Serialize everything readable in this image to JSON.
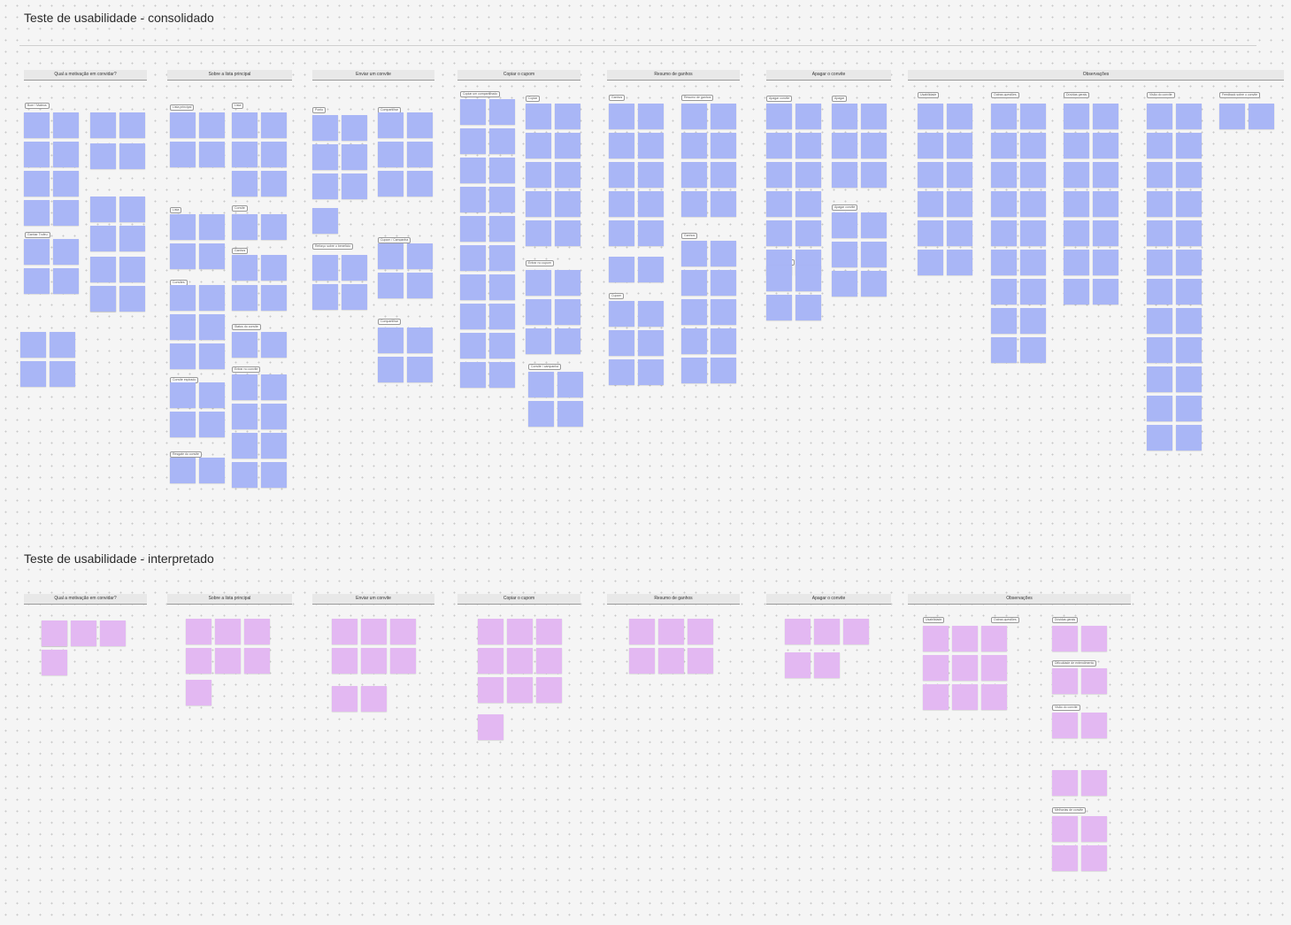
{
  "colors": {
    "canvas": "#f5f5f5",
    "note_blue": "#a9b6f6",
    "note_purple": "#e3b8f2",
    "header_bg": "#e8e8e8"
  },
  "sections": [
    {
      "title": "Teste de usabilidade - consolidado",
      "note_color": "blue",
      "columns": [
        {
          "label": "Qual a motivação em convidar?",
          "tags": [
            "Bom / Mateus",
            "Ganhar Trofeu"
          ]
        },
        {
          "label": "Sobre a lista principal",
          "tags": [
            "Lista principal",
            "Lista",
            "Lista",
            "Convite",
            "Ganhos",
            "Convites",
            "Status do convite",
            "Entrar no convite",
            "Convite expirado",
            "Resgate do convite"
          ]
        },
        {
          "label": "Enviar um convite",
          "tags": [
            "Ponto",
            "Compartilhar",
            "Reforço sobre o benefício",
            "Cupom / Campanha",
            "Compartilhar"
          ]
        },
        {
          "label": "Copiar o cupom",
          "tags": [
            "Copiar um compartilhado",
            "Copiar",
            "Entrar no cupom",
            "Convite / campanha"
          ]
        },
        {
          "label": "Resumo de ganhos",
          "tags": [
            "Ganhos",
            "Resumo de ganhos",
            "Ganhos",
            "Cupom"
          ]
        },
        {
          "label": "Apagar o convite",
          "tags": [
            "Apagar convite",
            "Apagar",
            "Cancelar convite",
            "Apagar convite"
          ]
        },
        {
          "label": "Observações",
          "tags": [
            "Usabilidade",
            "Outras questões",
            "Dúvidas gerais",
            "Visão do convite",
            "Feedback sobre o convite"
          ]
        }
      ]
    },
    {
      "title": "Teste de usabilidade - interpretado",
      "note_color": "purple",
      "columns": [
        {
          "label": "Qual a motivação em convidar?",
          "tags": []
        },
        {
          "label": "Sobre a lista principal",
          "tags": []
        },
        {
          "label": "Enviar um convite",
          "tags": []
        },
        {
          "label": "Copiar o cupom",
          "tags": []
        },
        {
          "label": "Resumo de ganhos",
          "tags": []
        },
        {
          "label": "Apagar o convite",
          "tags": []
        },
        {
          "label": "Observações",
          "tags": [
            "Usabilidade",
            "Dúvidas gerais",
            "Dificuldade de entendimento",
            "Outras questões",
            "Visão do convite",
            "Melhorias de convite"
          ]
        }
      ]
    }
  ]
}
